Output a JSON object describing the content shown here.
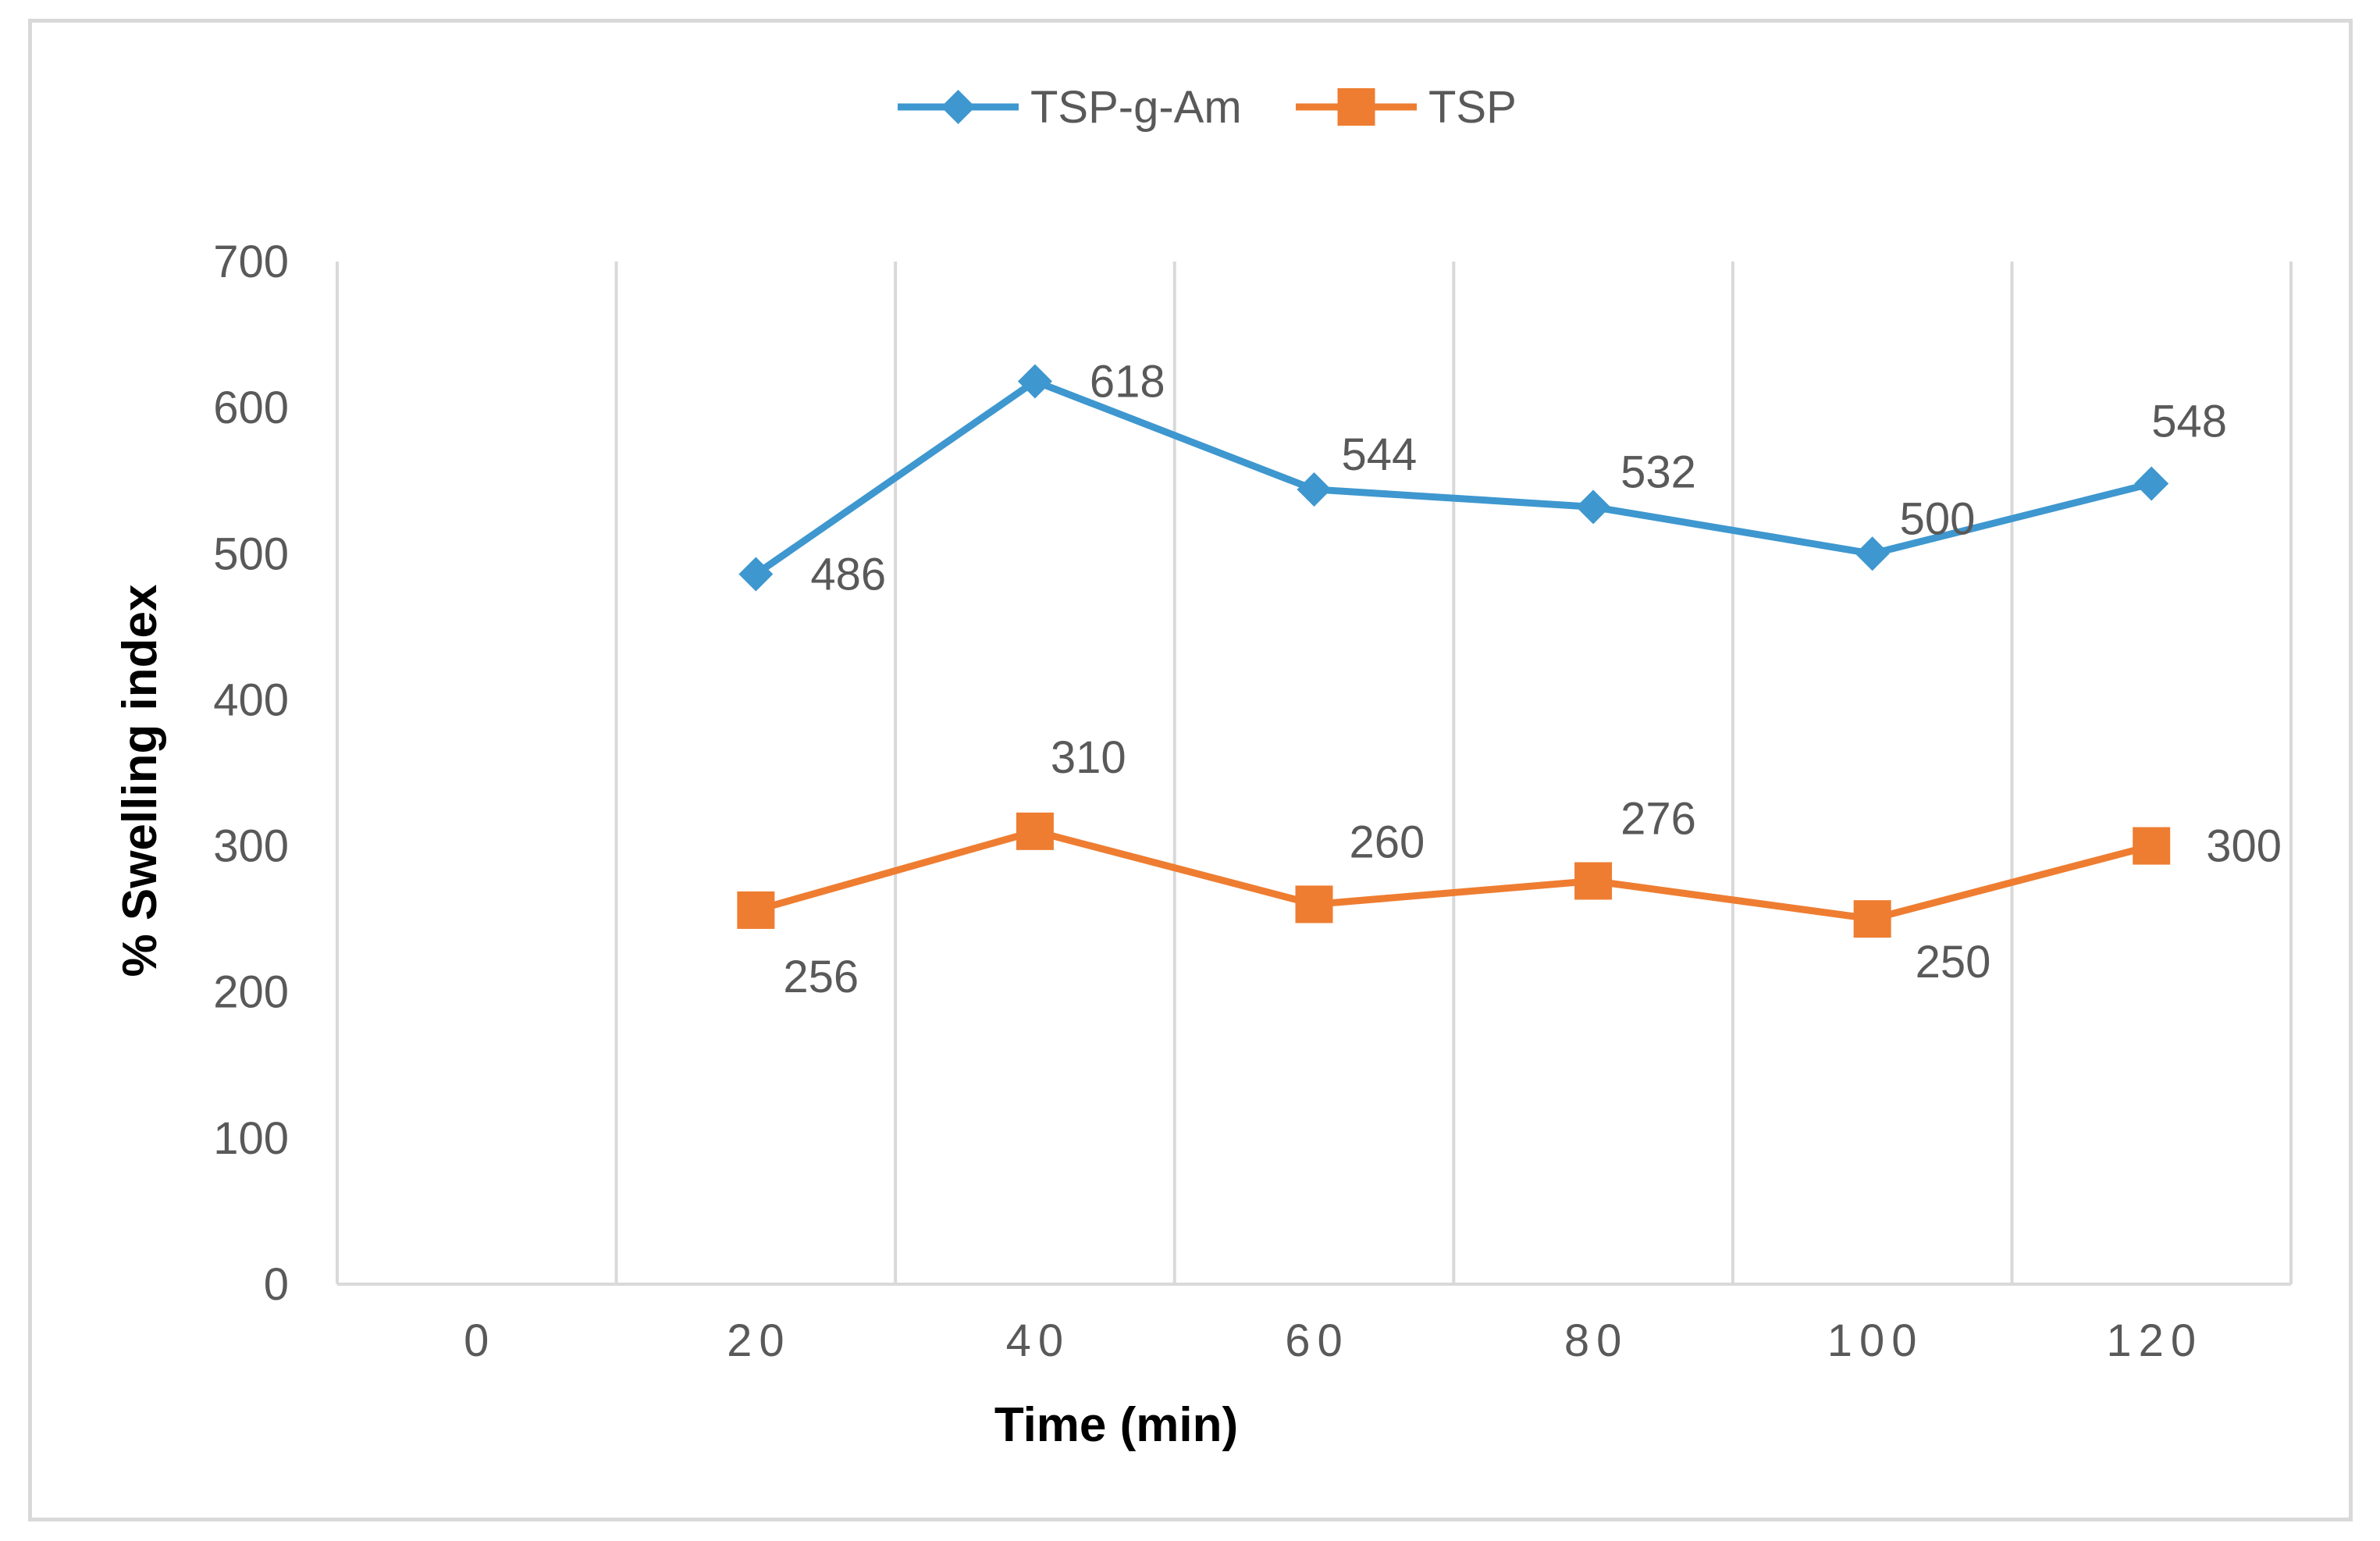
{
  "chart_data": {
    "type": "line",
    "title": "",
    "xlabel": "Time (min)",
    "ylabel": "% Swelling index",
    "categories": [
      "0",
      "20",
      "40",
      "60",
      "80",
      "100",
      "120"
    ],
    "yticks": [
      "0",
      "100",
      "200",
      "300",
      "400",
      "500",
      "600",
      "700"
    ],
    "ylim": [
      0,
      700
    ],
    "grid": "vertical",
    "legend": "top-center",
    "series": [
      {
        "name": "TSP-g-Am",
        "color": "#3e97cf",
        "marker": "diamond",
        "x": [
          "20",
          "40",
          "60",
          "80",
          "100",
          "120"
        ],
        "values": [
          486,
          618,
          544,
          532,
          500,
          548
        ],
        "labels": [
          "486",
          "618",
          "544",
          "532",
          "500",
          "548"
        ]
      },
      {
        "name": "TSP",
        "color": "#ee7d31",
        "marker": "square",
        "x": [
          "20",
          "40",
          "60",
          "80",
          "100",
          "120"
        ],
        "values": [
          256,
          310,
          260,
          276,
          250,
          300
        ],
        "labels": [
          "256",
          "310",
          "260",
          "276",
          "250",
          "300"
        ]
      }
    ]
  }
}
